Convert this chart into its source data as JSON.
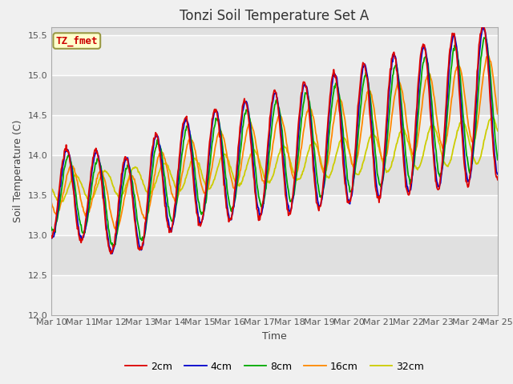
{
  "title": "Tonzi Soil Temperature Set A",
  "xlabel": "Time",
  "ylabel": "Soil Temperature (C)",
  "annotation": "TZ_fmet",
  "ylim": [
    12.0,
    15.6
  ],
  "yticks": [
    12.0,
    12.5,
    13.0,
    13.5,
    14.0,
    14.5,
    15.0,
    15.5
  ],
  "xticklabels": [
    "Mar 10",
    "Mar 11",
    "Mar 12",
    "Mar 13",
    "Mar 14",
    "Mar 15",
    "Mar 16",
    "Mar 17",
    "Mar 18",
    "Mar 19",
    "Mar 20",
    "Mar 21",
    "Mar 22",
    "Mar 23",
    "Mar 24",
    "Mar 25"
  ],
  "line_colors": [
    "#dd0000",
    "#0000cc",
    "#00aa00",
    "#ff8800",
    "#cccc00"
  ],
  "line_labels": [
    "2cm",
    "4cm",
    "8cm",
    "16cm",
    "32cm"
  ],
  "fig_bg_color": "#f0f0f0",
  "plot_bg_color": "#e0e0e0",
  "annotation_bg": "#ffffcc",
  "annotation_border": "#999944",
  "title_fontsize": 12,
  "axis_label_fontsize": 9,
  "tick_fontsize": 8,
  "legend_fontsize": 9
}
